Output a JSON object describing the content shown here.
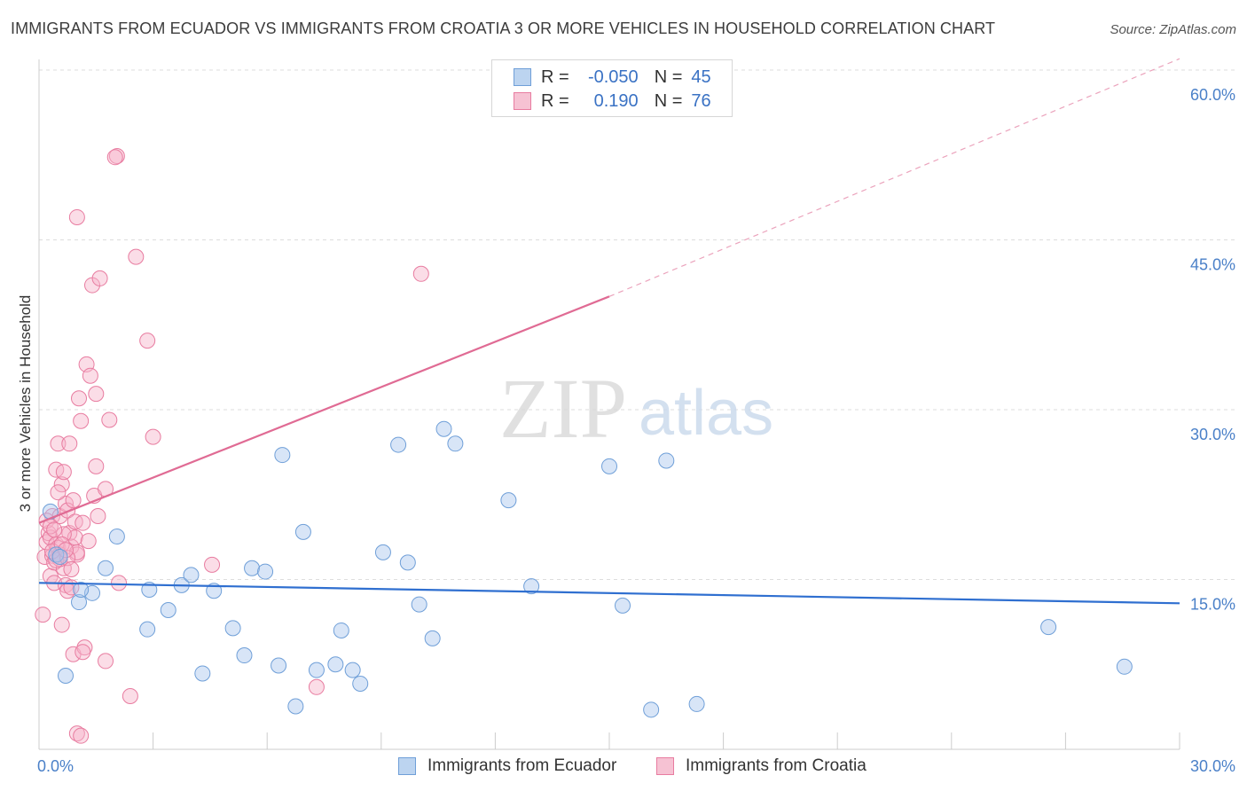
{
  "title": "IMMIGRANTS FROM ECUADOR VS IMMIGRANTS FROM CROATIA 3 OR MORE VEHICLES IN HOUSEHOLD CORRELATION CHART",
  "source": "Source: ZipAtlas.com",
  "watermark": {
    "zip": "ZIP",
    "atlas": "atlas"
  },
  "legend_top": {
    "rows": [
      {
        "r_label": "R =",
        "r_value": "-0.050",
        "n_label": "N =",
        "n_value": "45"
      },
      {
        "r_label": "R =",
        "r_value": "0.190",
        "n_label": "N =",
        "n_value": "76"
      }
    ]
  },
  "legend_bottom": [
    "Immigrants from Ecuador",
    "Immigrants from Croatia"
  ],
  "chart_data": {
    "type": "scatter",
    "title": "IMMIGRANTS FROM ECUADOR VS IMMIGRANTS FROM CROATIA 3 OR MORE VEHICLES IN HOUSEHOLD CORRELATION CHART",
    "xlabel": "",
    "ylabel": "3 or more Vehicles in Household",
    "xlim": [
      0,
      30
    ],
    "ylim": [
      0,
      60
    ],
    "x_tick_labels": [
      "0.0%",
      "30.0%"
    ],
    "y_ticks": [
      15,
      30,
      45,
      60
    ],
    "y_tick_labels": [
      "15.0%",
      "30.0%",
      "45.0%",
      "60.0%"
    ],
    "grid": true,
    "colors": {
      "ecuador": "#6f9fd8",
      "croatia": "#e87ca0",
      "ecuador_line": "#2f6fd0",
      "croatia_line": "#e06b94"
    },
    "series": [
      {
        "name": "Immigrants from Ecuador",
        "color": "#6f9fd8",
        "points": [
          [
            0.3,
            21.0
          ],
          [
            0.45,
            17.2
          ],
          [
            0.7,
            6.5
          ],
          [
            1.05,
            13.0
          ],
          [
            1.4,
            13.8
          ],
          [
            1.75,
            16.0
          ],
          [
            2.05,
            18.8
          ],
          [
            2.9,
            14.1
          ],
          [
            2.85,
            10.6
          ],
          [
            3.4,
            12.3
          ],
          [
            3.75,
            14.5
          ],
          [
            4.0,
            15.4
          ],
          [
            4.3,
            6.7
          ],
          [
            4.6,
            14.0
          ],
          [
            5.1,
            10.7
          ],
          [
            5.4,
            8.3
          ],
          [
            5.6,
            16.0
          ],
          [
            5.95,
            15.7
          ],
          [
            6.3,
            7.4
          ],
          [
            6.4,
            26.0
          ],
          [
            6.75,
            3.8
          ],
          [
            6.95,
            19.2
          ],
          [
            7.3,
            7.0
          ],
          [
            7.8,
            7.5
          ],
          [
            7.95,
            10.5
          ],
          [
            8.25,
            7.0
          ],
          [
            8.45,
            5.8
          ],
          [
            9.05,
            17.4
          ],
          [
            9.45,
            26.9
          ],
          [
            9.7,
            16.5
          ],
          [
            10.0,
            12.8
          ],
          [
            10.35,
            9.8
          ],
          [
            10.65,
            28.3
          ],
          [
            10.95,
            27.0
          ],
          [
            12.35,
            22.0
          ],
          [
            12.95,
            14.4
          ],
          [
            15.0,
            25.0
          ],
          [
            15.35,
            12.7
          ],
          [
            16.1,
            3.5
          ],
          [
            16.5,
            25.5
          ],
          [
            17.3,
            4.0
          ],
          [
            26.55,
            10.8
          ],
          [
            28.55,
            7.3
          ],
          [
            0.55,
            17.0
          ],
          [
            1.1,
            14.1
          ]
        ],
        "trend": {
          "x": [
            0,
            30
          ],
          "y": [
            14.7,
            12.9
          ]
        }
      },
      {
        "name": "Immigrants from Croatia",
        "color": "#e87ca0",
        "points": [
          [
            0.1,
            11.9
          ],
          [
            0.15,
            17.0
          ],
          [
            0.2,
            18.3
          ],
          [
            0.25,
            19.1
          ],
          [
            0.3,
            18.7
          ],
          [
            0.3,
            15.3
          ],
          [
            0.35,
            17.1
          ],
          [
            0.35,
            20.6
          ],
          [
            0.4,
            16.5
          ],
          [
            0.4,
            14.7
          ],
          [
            0.45,
            18.1
          ],
          [
            0.45,
            24.7
          ],
          [
            0.5,
            27.0
          ],
          [
            0.5,
            17.8
          ],
          [
            0.55,
            20.6
          ],
          [
            0.55,
            17.2
          ],
          [
            0.6,
            23.4
          ],
          [
            0.6,
            11.0
          ],
          [
            0.65,
            24.5
          ],
          [
            0.65,
            16.0
          ],
          [
            0.7,
            21.7
          ],
          [
            0.7,
            14.5
          ],
          [
            0.75,
            21.1
          ],
          [
            0.75,
            14.0
          ],
          [
            0.8,
            19.1
          ],
          [
            0.8,
            27.0
          ],
          [
            0.85,
            17.9
          ],
          [
            0.85,
            14.3
          ],
          [
            0.9,
            22.0
          ],
          [
            0.9,
            8.4
          ],
          [
            0.95,
            20.1
          ],
          [
            1.0,
            47.0
          ],
          [
            1.0,
            17.2
          ],
          [
            1.0,
            1.4
          ],
          [
            1.05,
            31.0
          ],
          [
            1.1,
            29.0
          ],
          [
            1.15,
            20.0
          ],
          [
            1.2,
            9.0
          ],
          [
            1.25,
            34.0
          ],
          [
            1.35,
            33.0
          ],
          [
            1.4,
            41.0
          ],
          [
            1.45,
            22.4
          ],
          [
            1.5,
            31.4
          ],
          [
            1.5,
            25.0
          ],
          [
            1.55,
            20.6
          ],
          [
            1.6,
            41.6
          ],
          [
            1.75,
            23.0
          ],
          [
            1.75,
            7.8
          ],
          [
            1.85,
            29.1
          ],
          [
            2.05,
            52.4
          ],
          [
            2.1,
            14.7
          ],
          [
            2.4,
            4.7
          ],
          [
            2.55,
            43.5
          ],
          [
            2.85,
            36.1
          ],
          [
            3.0,
            27.6
          ],
          [
            4.55,
            16.3
          ],
          [
            7.3,
            5.5
          ],
          [
            10.05,
            42.0
          ],
          [
            1.1,
            1.2
          ],
          [
            0.55,
            16.8
          ],
          [
            0.95,
            18.7
          ],
          [
            1.0,
            17.4
          ],
          [
            0.2,
            20.2
          ],
          [
            0.65,
            19.0
          ],
          [
            0.45,
            16.7
          ],
          [
            1.15,
            8.6
          ],
          [
            2.0,
            52.3
          ],
          [
            0.35,
            17.5
          ],
          [
            0.75,
            16.9
          ],
          [
            0.6,
            18.1
          ],
          [
            0.85,
            15.9
          ],
          [
            0.3,
            19.7
          ],
          [
            1.3,
            18.4
          ],
          [
            0.5,
            22.7
          ],
          [
            0.7,
            17.6
          ],
          [
            0.4,
            19.4
          ]
        ],
        "trend": {
          "x": [
            0,
            15
          ],
          "y": [
            20.0,
            40.0
          ],
          "dashed_extension": {
            "x": [
              15,
              30
            ],
            "y": [
              40.0,
              61.0
            ]
          }
        }
      }
    ]
  }
}
